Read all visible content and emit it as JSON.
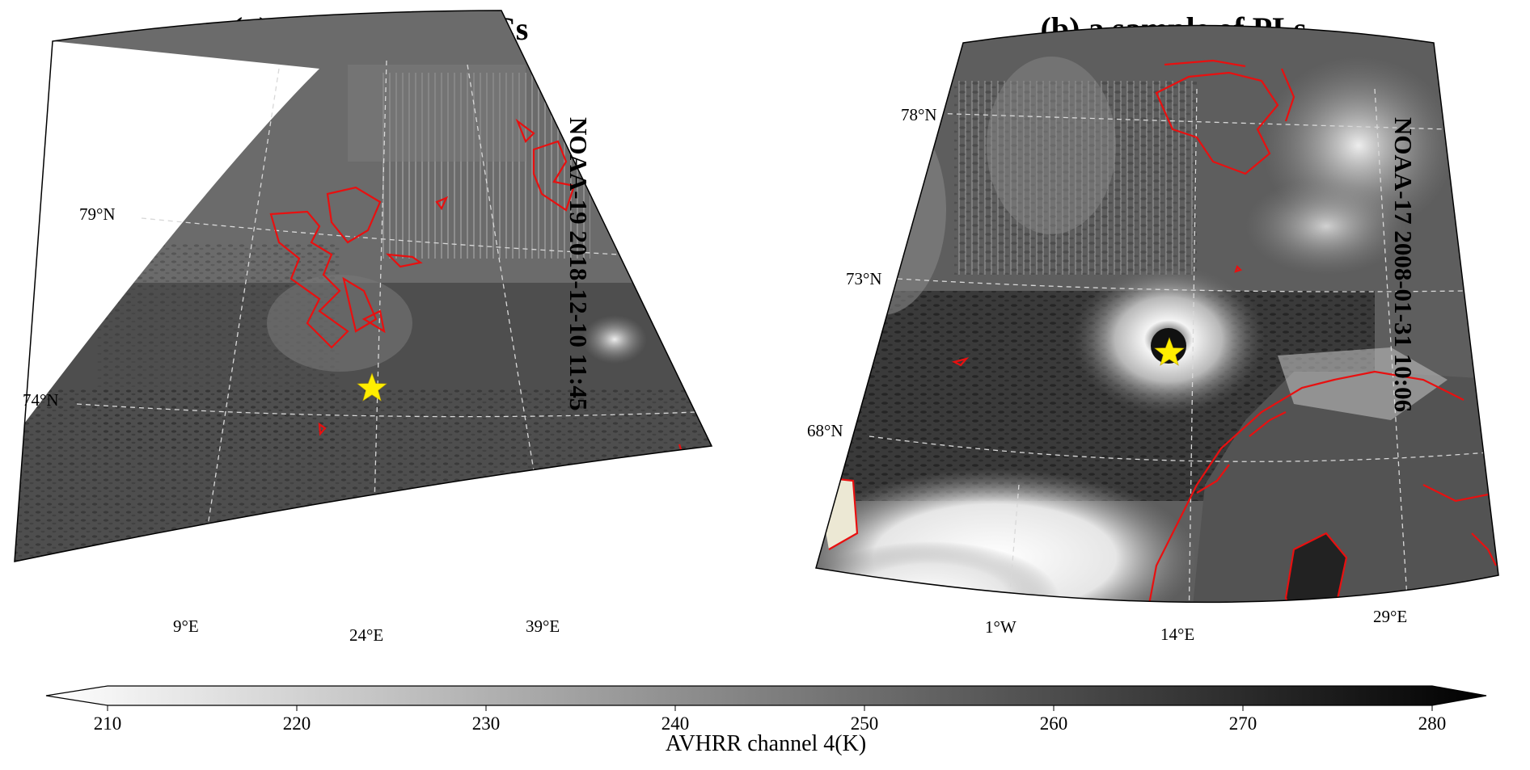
{
  "panel_a": {
    "title": "(a) a sample of PMCs",
    "satellite_label": "NOAA-19 2018-12-10 11:45",
    "lat_labels": [
      "79°N",
      "74°N"
    ],
    "lon_labels": [
      "9°E",
      "24°E",
      "39°E"
    ]
  },
  "panel_b": {
    "title": "(b) a sample of PLs",
    "satellite_label": "NOAA-17 2008-01-31 10:06",
    "lat_labels": [
      "78°N",
      "73°N",
      "68°N"
    ],
    "lon_labels": [
      "1°W",
      "14°E",
      "29°E"
    ]
  },
  "colorbar": {
    "label": "AVHRR channel 4(K)",
    "min": 210,
    "max": 280,
    "ticks": [
      "210",
      "220",
      "230",
      "240",
      "250",
      "260",
      "270",
      "280"
    ],
    "colormap": "greys (white at 210 K to black at 280 K)"
  },
  "colors": {
    "coastline": "#e81010",
    "marker_star": "#ffee00",
    "gridline": "#d8d8d8"
  }
}
